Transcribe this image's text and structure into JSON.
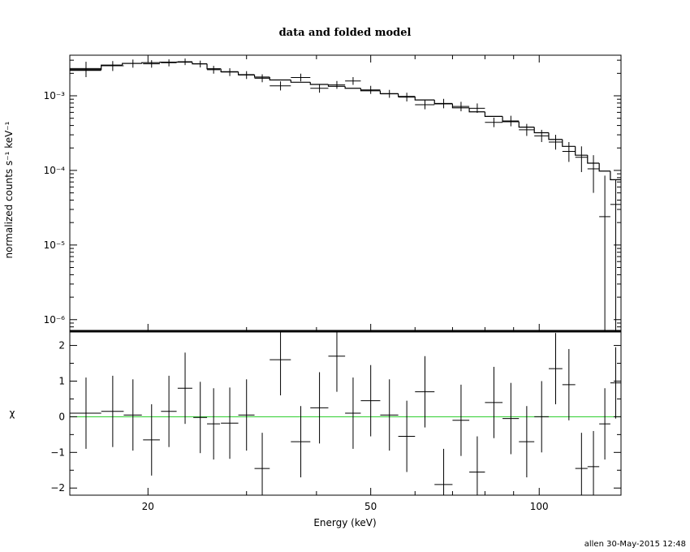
{
  "footer": "allen 30-May-2015 12:48",
  "chart_data": [
    {
      "type": "line",
      "panel": "top",
      "title": "data and folded model",
      "ylabel": "normalized counts s⁻¹ keV⁻¹",
      "xscale": "log",
      "yscale": "log",
      "xlim": [
        14.5,
        140
      ],
      "ylim": [
        7e-07,
        0.0035
      ],
      "yticks": [
        {
          "value": 0.001,
          "label": "10⁻³"
        },
        {
          "value": 0.0001,
          "label": "10⁻⁴"
        },
        {
          "value": 1e-05,
          "label": "10⁻⁵"
        },
        {
          "value": 1e-06,
          "label": "10⁻⁶"
        }
      ],
      "model_color": "#000000",
      "data_color": "#000000",
      "model_steps": [
        {
          "x0": 14.5,
          "x1": 16.5,
          "y": 0.00222
        },
        {
          "x0": 16.5,
          "x1": 18.0,
          "y": 0.00258
        },
        {
          "x0": 18.0,
          "x1": 19.5,
          "y": 0.00272
        },
        {
          "x0": 19.5,
          "x1": 21.0,
          "y": 0.00278
        },
        {
          "x0": 21.0,
          "x1": 22.5,
          "y": 0.00282
        },
        {
          "x0": 22.5,
          "x1": 24.0,
          "y": 0.00283
        },
        {
          "x0": 24.0,
          "x1": 25.5,
          "y": 0.00268
        },
        {
          "x0": 25.5,
          "x1": 27.0,
          "y": 0.0023
        },
        {
          "x0": 27.0,
          "x1": 29.0,
          "y": 0.0021
        },
        {
          "x0": 29.0,
          "x1": 31.0,
          "y": 0.00192
        },
        {
          "x0": 31.0,
          "x1": 33.0,
          "y": 0.00178
        },
        {
          "x0": 33.0,
          "x1": 36.0,
          "y": 0.00163
        },
        {
          "x0": 36.0,
          "x1": 39.0,
          "y": 0.00152
        },
        {
          "x0": 39.0,
          "x1": 42.0,
          "y": 0.00142
        },
        {
          "x0": 42.0,
          "x1": 45.0,
          "y": 0.00134
        },
        {
          "x0": 45.0,
          "x1": 48.0,
          "y": 0.00126
        },
        {
          "x0": 48.0,
          "x1": 52.0,
          "y": 0.00117
        },
        {
          "x0": 52.0,
          "x1": 56.0,
          "y": 0.00107
        },
        {
          "x0": 56.0,
          "x1": 60.0,
          "y": 0.00098
        },
        {
          "x0": 60.0,
          "x1": 65.0,
          "y": 0.00088
        },
        {
          "x0": 65.0,
          "x1": 70.0,
          "y": 0.00078
        },
        {
          "x0": 70.0,
          "x1": 75.0,
          "y": 0.00069
        },
        {
          "x0": 75.0,
          "x1": 80.0,
          "y": 0.00061
        },
        {
          "x0": 80.0,
          "x1": 86.0,
          "y": 0.00053
        },
        {
          "x0": 86.0,
          "x1": 92.0,
          "y": 0.00045
        },
        {
          "x0": 92.0,
          "x1": 98.0,
          "y": 0.00038
        },
        {
          "x0": 98.0,
          "x1": 104.0,
          "y": 0.00032
        },
        {
          "x0": 104.0,
          "x1": 110.0,
          "y": 0.00026
        },
        {
          "x0": 110.0,
          "x1": 116.0,
          "y": 0.00021
        },
        {
          "x0": 116.0,
          "x1": 122.0,
          "y": 0.00016
        },
        {
          "x0": 122.0,
          "x1": 128.0,
          "y": 0.000125
        },
        {
          "x0": 128.0,
          "x1": 134.0,
          "y": 9.8e-05
        },
        {
          "x0": 134.0,
          "x1": 140.0,
          "y": 7.5e-05
        }
      ],
      "data_points": [
        {
          "x": 15.5,
          "xerr": 1.0,
          "y": 0.00232,
          "ylo": 0.00178,
          "yhi": 0.00286
        },
        {
          "x": 17.3,
          "xerr": 0.8,
          "y": 0.00253,
          "ylo": 0.00215,
          "yhi": 0.00292
        },
        {
          "x": 18.8,
          "xerr": 0.7,
          "y": 0.00272,
          "ylo": 0.00238,
          "yhi": 0.00306
        },
        {
          "x": 20.3,
          "xerr": 0.7,
          "y": 0.00268,
          "ylo": 0.00238,
          "yhi": 0.003
        },
        {
          "x": 21.8,
          "xerr": 0.7,
          "y": 0.00278,
          "ylo": 0.00248,
          "yhi": 0.00308
        },
        {
          "x": 23.3,
          "xerr": 0.7,
          "y": 0.00286,
          "ylo": 0.00258,
          "yhi": 0.00316
        },
        {
          "x": 24.8,
          "xerr": 0.7,
          "y": 0.00268,
          "ylo": 0.0024,
          "yhi": 0.00296
        },
        {
          "x": 26.2,
          "xerr": 0.7,
          "y": 0.00224,
          "ylo": 0.00198,
          "yhi": 0.00252
        },
        {
          "x": 28.0,
          "xerr": 1.0,
          "y": 0.00208,
          "ylo": 0.00184,
          "yhi": 0.00234
        },
        {
          "x": 30.0,
          "xerr": 1.0,
          "y": 0.0019,
          "ylo": 0.00168,
          "yhi": 0.00214
        },
        {
          "x": 32.0,
          "xerr": 1.0,
          "y": 0.00172,
          "ylo": 0.00152,
          "yhi": 0.00194
        },
        {
          "x": 34.5,
          "xerr": 1.5,
          "y": 0.00136,
          "ylo": 0.00118,
          "yhi": 0.00156
        },
        {
          "x": 37.5,
          "xerr": 1.5,
          "y": 0.00176,
          "ylo": 0.00156,
          "yhi": 0.00198
        },
        {
          "x": 40.5,
          "xerr": 1.5,
          "y": 0.00126,
          "ylo": 0.0011,
          "yhi": 0.00144
        },
        {
          "x": 43.5,
          "xerr": 1.5,
          "y": 0.0014,
          "ylo": 0.00124,
          "yhi": 0.00158
        },
        {
          "x": 46.5,
          "xerr": 1.5,
          "y": 0.00158,
          "ylo": 0.0014,
          "yhi": 0.00178
        },
        {
          "x": 50.0,
          "xerr": 2.0,
          "y": 0.0012,
          "ylo": 0.00106,
          "yhi": 0.00136
        },
        {
          "x": 54.0,
          "xerr": 2.0,
          "y": 0.00106,
          "ylo": 0.00094,
          "yhi": 0.0012
        },
        {
          "x": 58.0,
          "xerr": 2.0,
          "y": 0.00096,
          "ylo": 0.00084,
          "yhi": 0.0011
        },
        {
          "x": 62.5,
          "xerr": 2.5,
          "y": 0.00076,
          "ylo": 0.00066,
          "yhi": 0.00088
        },
        {
          "x": 67.5,
          "xerr": 2.5,
          "y": 0.00079,
          "ylo": 0.00068,
          "yhi": 0.00091
        },
        {
          "x": 72.5,
          "xerr": 2.5,
          "y": 0.00072,
          "ylo": 0.00062,
          "yhi": 0.00083
        },
        {
          "x": 77.5,
          "xerr": 2.5,
          "y": 0.00068,
          "ylo": 0.00059,
          "yhi": 0.00079
        },
        {
          "x": 83.0,
          "xerr": 3.0,
          "y": 0.00044,
          "ylo": 0.00038,
          "yhi": 0.00051
        },
        {
          "x": 89.0,
          "xerr": 3.0,
          "y": 0.00046,
          "ylo": 0.00039,
          "yhi": 0.00054
        },
        {
          "x": 95.0,
          "xerr": 3.0,
          "y": 0.00035,
          "ylo": 0.00029,
          "yhi": 0.00042
        },
        {
          "x": 101.0,
          "xerr": 3.0,
          "y": 0.00029,
          "ylo": 0.00024,
          "yhi": 0.00035
        },
        {
          "x": 107.0,
          "xerr": 3.0,
          "y": 0.00024,
          "ylo": 0.00019,
          "yhi": 0.0003
        },
        {
          "x": 113.0,
          "xerr": 3.0,
          "y": 0.00018,
          "ylo": 0.00013,
          "yhi": 0.00024
        },
        {
          "x": 119.0,
          "xerr": 3.0,
          "y": 0.00015,
          "ylo": 9.5e-05,
          "yhi": 0.00021
        },
        {
          "x": 125.0,
          "xerr": 3.0,
          "y": 0.000105,
          "ylo": 5e-05,
          "yhi": 0.00016
        },
        {
          "x": 131.0,
          "xerr": 3.0,
          "y": 2.4e-05,
          "ylo": 7e-07,
          "yhi": 8.5e-05
        },
        {
          "x": 137.0,
          "xerr": 3.0,
          "y": 3.5e-05,
          "ylo": 7e-07,
          "yhi": 7.5e-05
        }
      ]
    },
    {
      "type": "scatter",
      "panel": "bottom",
      "xlabel": "Energy (keV)",
      "ylabel": "χ",
      "xscale": "log",
      "xlim": [
        14.5,
        140
      ],
      "ylim": [
        -2.2,
        2.4
      ],
      "xticks": [
        {
          "value": 20,
          "label": "20"
        },
        {
          "value": 50,
          "label": "50"
        },
        {
          "value": 100,
          "label": "100"
        }
      ],
      "yticks": [
        {
          "value": 2,
          "label": "2"
        },
        {
          "value": 1,
          "label": "1"
        },
        {
          "value": 0,
          "label": "0"
        },
        {
          "value": -1,
          "label": "−1"
        },
        {
          "value": -2,
          "label": "−2"
        }
      ],
      "zero_line_color": "#22cc22",
      "residuals": [
        {
          "x": 15.5,
          "xerr": 1.0,
          "y": 0.1
        },
        {
          "x": 17.3,
          "xerr": 0.8,
          "y": 0.15
        },
        {
          "x": 18.8,
          "xerr": 0.7,
          "y": 0.05
        },
        {
          "x": 20.3,
          "xerr": 0.7,
          "y": -0.65
        },
        {
          "x": 21.8,
          "xerr": 0.7,
          "y": 0.15
        },
        {
          "x": 23.3,
          "xerr": 0.7,
          "y": 0.8
        },
        {
          "x": 24.8,
          "xerr": 0.7,
          "y": -0.02
        },
        {
          "x": 26.2,
          "xerr": 0.7,
          "y": -0.2
        },
        {
          "x": 28.0,
          "xerr": 1.0,
          "y": -0.18
        },
        {
          "x": 30.0,
          "xerr": 1.0,
          "y": 0.05
        },
        {
          "x": 32.0,
          "xerr": 1.0,
          "y": -1.45
        },
        {
          "x": 34.5,
          "xerr": 1.5,
          "y": 1.6
        },
        {
          "x": 37.5,
          "xerr": 1.5,
          "y": -0.7
        },
        {
          "x": 40.5,
          "xerr": 1.5,
          "y": 0.25
        },
        {
          "x": 43.5,
          "xerr": 1.5,
          "y": 1.7
        },
        {
          "x": 46.5,
          "xerr": 1.5,
          "y": 0.1
        },
        {
          "x": 50.0,
          "xerr": 2.0,
          "y": 0.45
        },
        {
          "x": 54.0,
          "xerr": 2.0,
          "y": 0.05
        },
        {
          "x": 58.0,
          "xerr": 2.0,
          "y": -0.55
        },
        {
          "x": 62.5,
          "xerr": 2.5,
          "y": 0.7
        },
        {
          "x": 67.5,
          "xerr": 2.5,
          "y": -1.9
        },
        {
          "x": 72.5,
          "xerr": 2.5,
          "y": -0.1
        },
        {
          "x": 77.5,
          "xerr": 2.5,
          "y": -1.55
        },
        {
          "x": 83.0,
          "xerr": 3.0,
          "y": 0.4
        },
        {
          "x": 89.0,
          "xerr": 3.0,
          "y": -0.05
        },
        {
          "x": 95.0,
          "xerr": 3.0,
          "y": -0.7
        },
        {
          "x": 101.0,
          "xerr": 3.0,
          "y": 0.0
        },
        {
          "x": 107.0,
          "xerr": 3.0,
          "y": 1.35
        },
        {
          "x": 113.0,
          "xerr": 3.0,
          "y": 0.9
        },
        {
          "x": 119.0,
          "xerr": 3.0,
          "y": -1.45
        },
        {
          "x": 125.0,
          "xerr": 3.0,
          "y": -1.4
        },
        {
          "x": 131.0,
          "xerr": 3.0,
          "y": -0.2
        },
        {
          "x": 137.0,
          "xerr": 3.0,
          "y": 0.95
        }
      ]
    }
  ]
}
